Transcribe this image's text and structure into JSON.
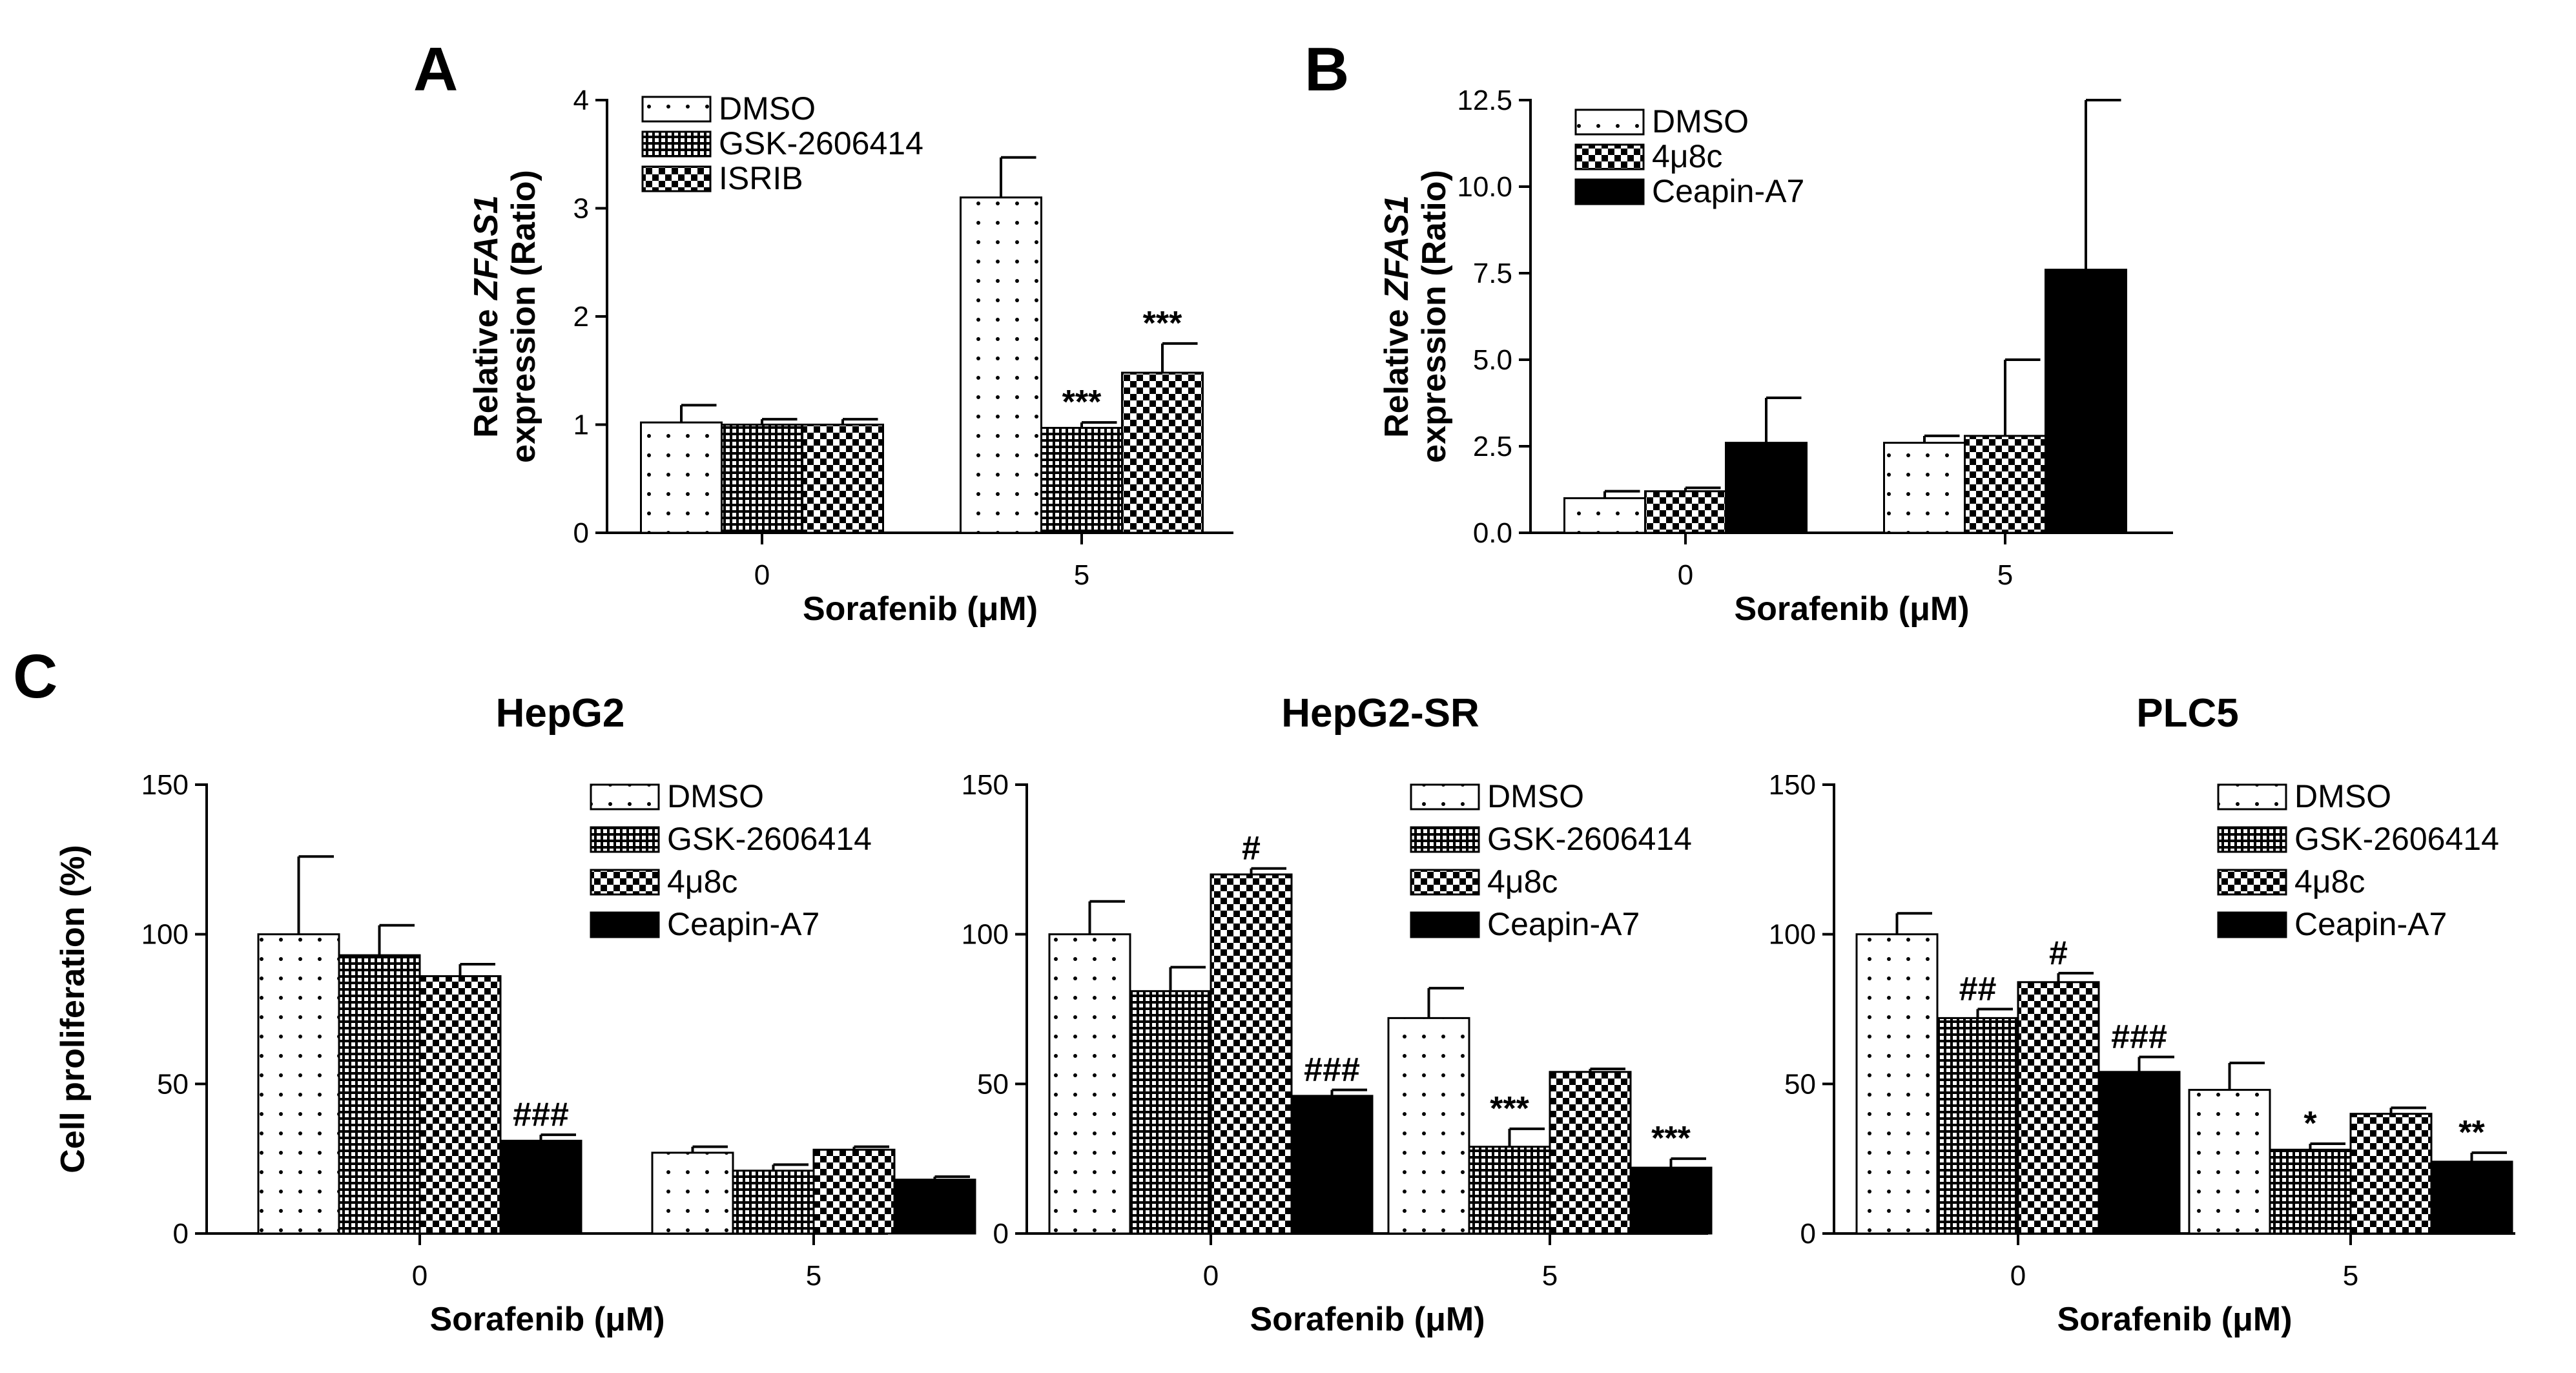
{
  "panels": [
    {
      "id": "A",
      "label": "A"
    },
    {
      "id": "B",
      "label": "B"
    },
    {
      "id": "C",
      "label": "C"
    }
  ],
  "colors": {
    "ink": "#000000",
    "fill": "#ffffff"
  },
  "patterns": {
    "DMSO": "sparse-dots",
    "GSK-2606414": "dense-grid",
    "ISRIB": "checker",
    "4μ8c": "checker",
    "Ceapin-A7": "solid-black"
  },
  "chart_data": [
    {
      "id": "A",
      "type": "bar",
      "title": "",
      "xlabel": "Sorafenib (μM)",
      "ylabel_parts": [
        "Relative ",
        "ZFAS1",
        " expression (Ratio)"
      ],
      "categories": [
        "0",
        "5"
      ],
      "ylim": [
        0,
        4
      ],
      "yticks": [
        "0",
        "1",
        "2",
        "3",
        "4"
      ],
      "legend_position": "top-left",
      "series": [
        {
          "name": "DMSO",
          "values": [
            1.02,
            3.1
          ],
          "errors": [
            0.16,
            0.37
          ],
          "annotations": [
            "",
            ""
          ]
        },
        {
          "name": "GSK-2606414",
          "values": [
            1.0,
            0.97
          ],
          "errors": [
            0.05,
            0.05
          ],
          "annotations": [
            "",
            "***"
          ]
        },
        {
          "name": "ISRIB",
          "values": [
            1.0,
            1.48
          ],
          "errors": [
            0.05,
            0.27
          ],
          "annotations": [
            "",
            "***"
          ]
        }
      ]
    },
    {
      "id": "B",
      "type": "bar",
      "title": "",
      "xlabel": "Sorafenib (μM)",
      "ylabel_parts": [
        "Relative ",
        "ZFAS1",
        " expression (Ratio)"
      ],
      "categories": [
        "0",
        "5"
      ],
      "ylim": [
        0,
        12.5
      ],
      "yticks": [
        "0.0",
        "2.5",
        "5.0",
        "7.5",
        "10.0",
        "12.5"
      ],
      "legend_position": "top-left",
      "series": [
        {
          "name": "DMSO",
          "values": [
            1.0,
            2.6
          ],
          "errors": [
            0.2,
            0.2
          ],
          "annotations": [
            "",
            ""
          ]
        },
        {
          "name": "4μ8c",
          "values": [
            1.2,
            2.8
          ],
          "errors": [
            0.1,
            2.2
          ],
          "annotations": [
            "",
            ""
          ]
        },
        {
          "name": "Ceapin-A7",
          "values": [
            2.6,
            7.6
          ],
          "errors": [
            1.3,
            4.9
          ],
          "annotations": [
            "",
            ""
          ]
        }
      ]
    },
    {
      "id": "C1",
      "type": "bar",
      "title": "HepG2",
      "xlabel": "Sorafenib (μM)",
      "ylabel": "Cell proliferation (%)",
      "categories": [
        "0",
        "5"
      ],
      "ylim": [
        0,
        150
      ],
      "yticks": [
        "0",
        "50",
        "100",
        "150"
      ],
      "legend_position": "top-right",
      "series": [
        {
          "name": "DMSO",
          "values": [
            100,
            27
          ],
          "errors": [
            26,
            2
          ],
          "annotations": [
            "",
            ""
          ]
        },
        {
          "name": "GSK-2606414",
          "values": [
            93,
            21
          ],
          "errors": [
            10,
            2
          ],
          "annotations": [
            "",
            ""
          ]
        },
        {
          "name": "4μ8c",
          "values": [
            86,
            28
          ],
          "errors": [
            4,
            1
          ],
          "annotations": [
            "",
            ""
          ]
        },
        {
          "name": "Ceapin-A7",
          "values": [
            31,
            18
          ],
          "errors": [
            2,
            1
          ],
          "annotations": [
            "###",
            ""
          ]
        }
      ]
    },
    {
      "id": "C2",
      "type": "bar",
      "title": "HepG2-SR",
      "xlabel": "Sorafenib (μM)",
      "ylabel": "",
      "categories": [
        "0",
        "5"
      ],
      "ylim": [
        0,
        150
      ],
      "yticks": [
        "0",
        "50",
        "100",
        "150"
      ],
      "legend_position": "top-right",
      "series": [
        {
          "name": "DMSO",
          "values": [
            100,
            72
          ],
          "errors": [
            11,
            10
          ],
          "annotations": [
            "",
            ""
          ]
        },
        {
          "name": "GSK-2606414",
          "values": [
            81,
            29
          ],
          "errors": [
            8,
            6
          ],
          "annotations": [
            "",
            "***"
          ]
        },
        {
          "name": "4μ8c",
          "values": [
            120,
            54
          ],
          "errors": [
            2,
            1
          ],
          "annotations": [
            "#",
            ""
          ]
        },
        {
          "name": "Ceapin-A7",
          "values": [
            46,
            22
          ],
          "errors": [
            2,
            3
          ],
          "annotations": [
            "###",
            "***"
          ]
        }
      ]
    },
    {
      "id": "C3",
      "type": "bar",
      "title": "PLC5",
      "xlabel": "Sorafenib (μM)",
      "ylabel": "",
      "categories": [
        "0",
        "5"
      ],
      "ylim": [
        0,
        150
      ],
      "yticks": [
        "0",
        "50",
        "100",
        "150"
      ],
      "legend_position": "top-right",
      "series": [
        {
          "name": "DMSO",
          "values": [
            100,
            48
          ],
          "errors": [
            7,
            9
          ],
          "annotations": [
            "",
            ""
          ]
        },
        {
          "name": "GSK-2606414",
          "values": [
            72,
            28
          ],
          "errors": [
            3,
            2
          ],
          "annotations": [
            "##",
            "*"
          ]
        },
        {
          "name": "4μ8c",
          "values": [
            84,
            40
          ],
          "errors": [
            3,
            2
          ],
          "annotations": [
            "#",
            ""
          ]
        },
        {
          "name": "Ceapin-A7",
          "values": [
            54,
            24
          ],
          "errors": [
            5,
            3
          ],
          "annotations": [
            "###",
            "**"
          ]
        }
      ]
    }
  ]
}
